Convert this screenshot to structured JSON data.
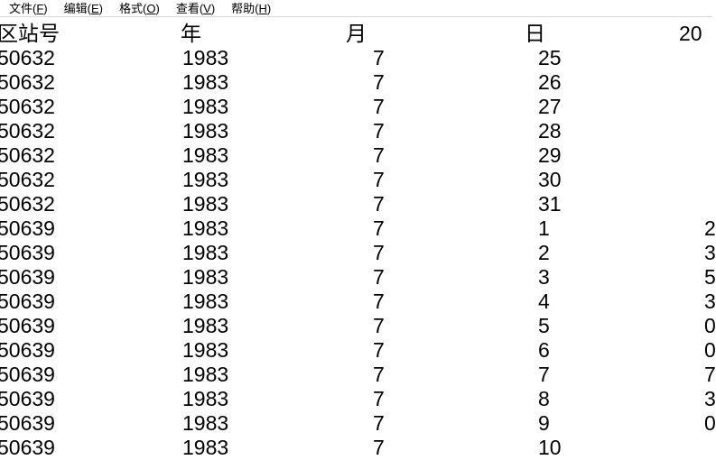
{
  "menu_bar": {
    "items": [
      {
        "pre": "文件(",
        "mnemonic": "F",
        "post": ")"
      },
      {
        "pre": "编辑(",
        "mnemonic": "E",
        "post": ")"
      },
      {
        "pre": "格式(",
        "mnemonic": "O",
        "post": ")"
      },
      {
        "pre": "查看(",
        "mnemonic": "V",
        "post": ")"
      },
      {
        "pre": "帮助(",
        "mnemonic": "H",
        "post": ")"
      }
    ]
  },
  "table": {
    "headers": {
      "station": "区站号",
      "year": "年",
      "month": "月",
      "day": "日",
      "value": "20"
    },
    "rows": [
      {
        "station": "50632",
        "year": "1983",
        "month": "7",
        "day": "25",
        "value": ""
      },
      {
        "station": "50632",
        "year": "1983",
        "month": "7",
        "day": "26",
        "value": ""
      },
      {
        "station": "50632",
        "year": "1983",
        "month": "7",
        "day": "27",
        "value": ""
      },
      {
        "station": "50632",
        "year": "1983",
        "month": "7",
        "day": "28",
        "value": ""
      },
      {
        "station": "50632",
        "year": "1983",
        "month": "7",
        "day": "29",
        "value": ""
      },
      {
        "station": "50632",
        "year": "1983",
        "month": "7",
        "day": "30",
        "value": ""
      },
      {
        "station": "50632",
        "year": "1983",
        "month": "7",
        "day": "31",
        "value": ""
      },
      {
        "station": "50639",
        "year": "1983",
        "month": "7",
        "day": "1",
        "value": "2"
      },
      {
        "station": "50639",
        "year": "1983",
        "month": "7",
        "day": "2",
        "value": "3"
      },
      {
        "station": "50639",
        "year": "1983",
        "month": "7",
        "day": "3",
        "value": "5"
      },
      {
        "station": "50639",
        "year": "1983",
        "month": "7",
        "day": "4",
        "value": "3"
      },
      {
        "station": "50639",
        "year": "1983",
        "month": "7",
        "day": "5",
        "value": "0"
      },
      {
        "station": "50639",
        "year": "1983",
        "month": "7",
        "day": "6",
        "value": "0"
      },
      {
        "station": "50639",
        "year": "1983",
        "month": "7",
        "day": "7",
        "value": "7"
      },
      {
        "station": "50639",
        "year": "1983",
        "month": "7",
        "day": "8",
        "value": "3"
      },
      {
        "station": "50639",
        "year": "1983",
        "month": "7",
        "day": "9",
        "value": "0"
      },
      {
        "station": "50639",
        "year": "1983",
        "month": "7",
        "day": "10",
        "value": ""
      }
    ]
  },
  "colors": {
    "background": "#ffffff",
    "text": "#000000",
    "menu_separator": "#d9d9d9"
  }
}
